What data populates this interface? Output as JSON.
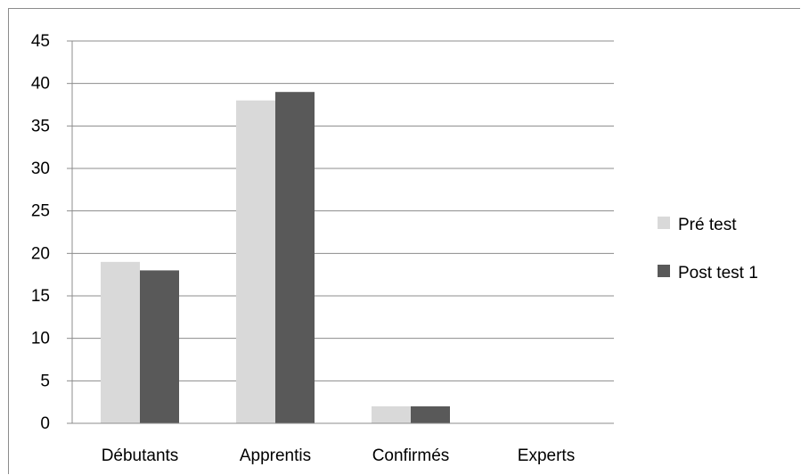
{
  "chart_data": {
    "type": "bar",
    "categories": [
      "Débutants",
      "Apprentis",
      "Confirmés",
      "Experts"
    ],
    "series": [
      {
        "name": "Pré test",
        "color": "#d9d9d9",
        "values": [
          19,
          38,
          2,
          0
        ]
      },
      {
        "name": "Post test 1",
        "color": "#595959",
        "values": [
          18,
          39,
          2,
          0
        ]
      }
    ],
    "ylim": [
      0,
      45
    ],
    "yticks": [
      "0",
      "5",
      "10",
      "15",
      "20",
      "25",
      "30",
      "35",
      "40",
      "45"
    ],
    "grid": true,
    "legend_position": "right",
    "title": "",
    "xlabel": "",
    "ylabel": ""
  }
}
